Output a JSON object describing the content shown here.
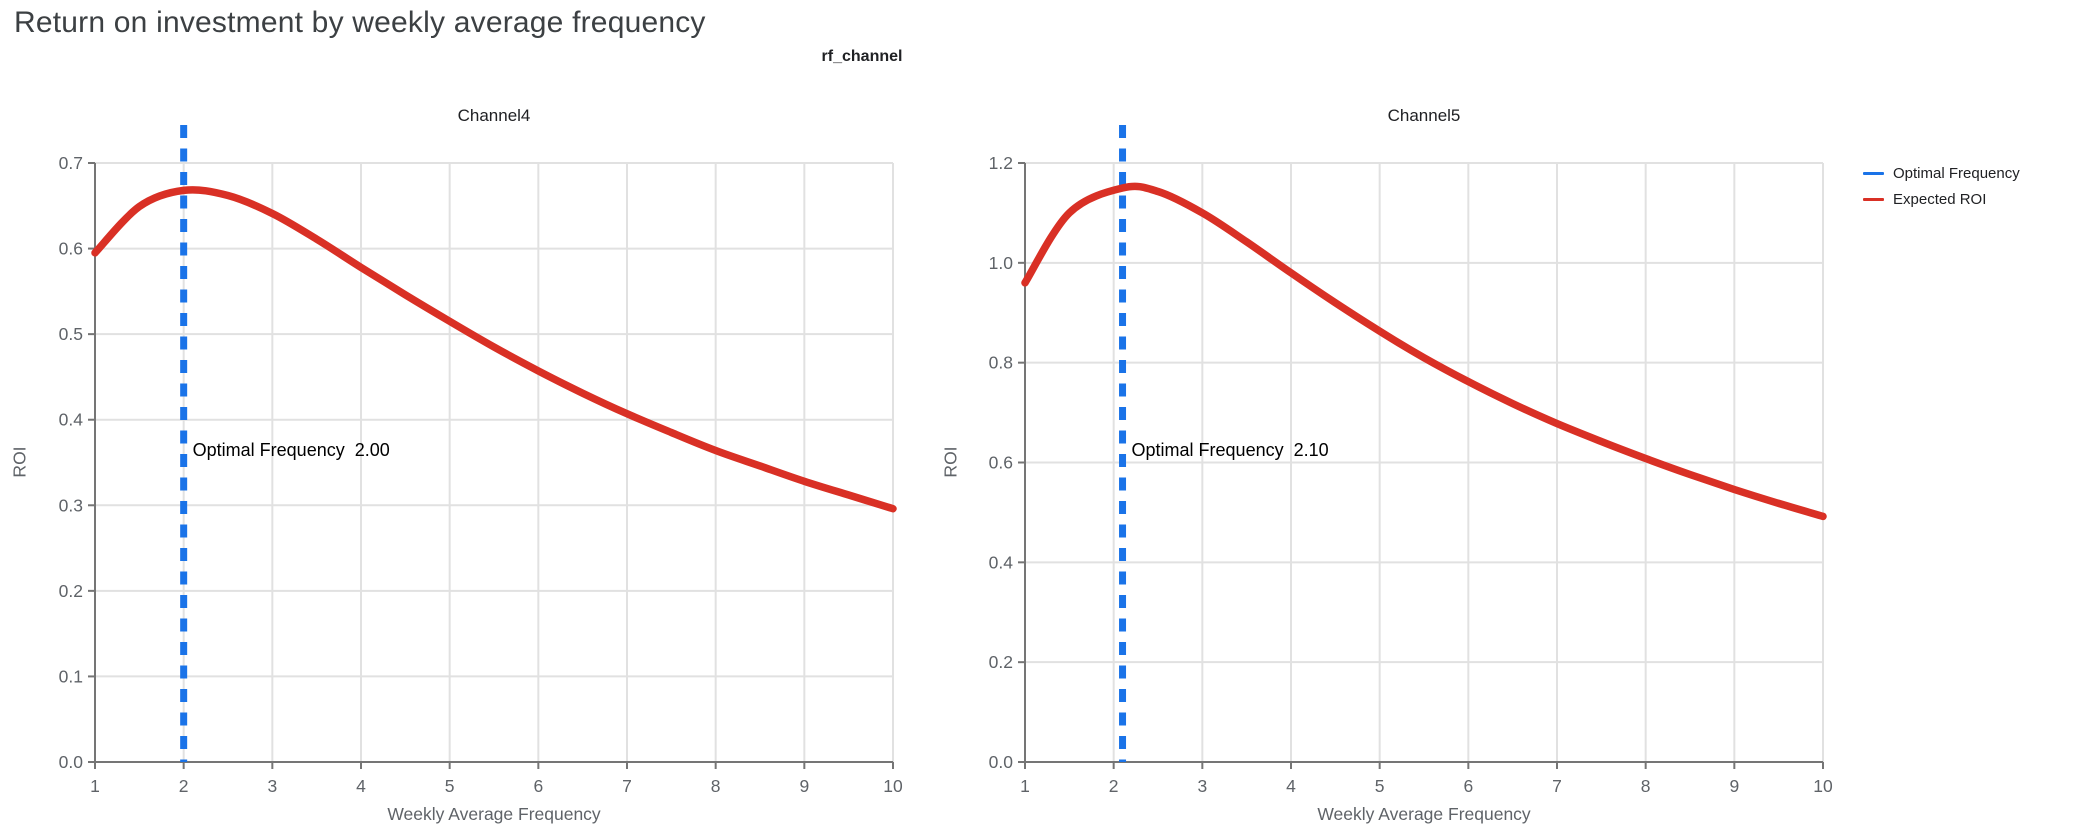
{
  "page_title": "Return on investment by weekly average frequency",
  "figure_title": "rf_channel",
  "colors": {
    "expected_roi": "#D93025",
    "optimal_frequency": "#1A73E8",
    "grid": "#E1E1E1",
    "axis": "#757575",
    "tick_label": "#5F6368",
    "page_title": "#3C4043",
    "text": "#202124"
  },
  "legend": {
    "position": "right",
    "items": [
      {
        "label": "Optimal Frequency",
        "color": "#1A73E8"
      },
      {
        "label": "Expected ROI",
        "color": "#D93025"
      }
    ]
  },
  "chart_data": [
    {
      "type": "line",
      "title": "Channel4",
      "xlabel": "Weekly Average Frequency",
      "ylabel": "ROI",
      "xlim": [
        1,
        10
      ],
      "ylim": [
        0.0,
        0.7
      ],
      "xticks": [
        1,
        2,
        3,
        4,
        5,
        6,
        7,
        8,
        9,
        10
      ],
      "yticks": [
        0.0,
        0.1,
        0.2,
        0.3,
        0.4,
        0.5,
        0.6,
        0.7
      ],
      "ytick_labels": [
        "0.0",
        "0.1",
        "0.2",
        "0.3",
        "0.4",
        "0.5",
        "0.6",
        "0.7"
      ],
      "grid": true,
      "optimal_frequency": 2.0,
      "annotation": "Optimal Frequency  2.00",
      "series": [
        {
          "name": "Expected ROI",
          "x": [
            1,
            1.5,
            2,
            2.5,
            3,
            3.5,
            4,
            4.5,
            5,
            5.5,
            6,
            6.5,
            7,
            7.5,
            8,
            8.5,
            9,
            9.5,
            10
          ],
          "y": [
            0.595,
            0.649,
            0.668,
            0.662,
            0.641,
            0.611,
            0.578,
            0.546,
            0.515,
            0.485,
            0.457,
            0.431,
            0.407,
            0.385,
            0.364,
            0.346,
            0.328,
            0.312,
            0.296
          ]
        }
      ]
    },
    {
      "type": "line",
      "title": "Channel5",
      "xlabel": "Weekly Average Frequency",
      "ylabel": "ROI",
      "xlim": [
        1,
        10
      ],
      "ylim": [
        0.0,
        1.2
      ],
      "xticks": [
        1,
        2,
        3,
        4,
        5,
        6,
        7,
        8,
        9,
        10
      ],
      "yticks": [
        0.0,
        0.2,
        0.4,
        0.6,
        0.8,
        1.0,
        1.2
      ],
      "ytick_labels": [
        "0.0",
        "0.2",
        "0.4",
        "0.6",
        "0.8",
        "1.0",
        "1.2"
      ],
      "grid": true,
      "optimal_frequency": 2.1,
      "annotation": "Optimal Frequency  2.10",
      "series": [
        {
          "name": "Expected ROI",
          "x": [
            1,
            1.5,
            2.1,
            2.5,
            3,
            3.5,
            4,
            4.5,
            5,
            5.5,
            6,
            6.5,
            7,
            7.5,
            8,
            8.5,
            9,
            9.5,
            10
          ],
          "y": [
            0.96,
            1.1,
            1.15,
            1.143,
            1.1,
            1.042,
            0.98,
            0.92,
            0.863,
            0.81,
            0.762,
            0.718,
            0.678,
            0.642,
            0.608,
            0.576,
            0.546,
            0.518,
            0.492
          ]
        }
      ]
    }
  ]
}
